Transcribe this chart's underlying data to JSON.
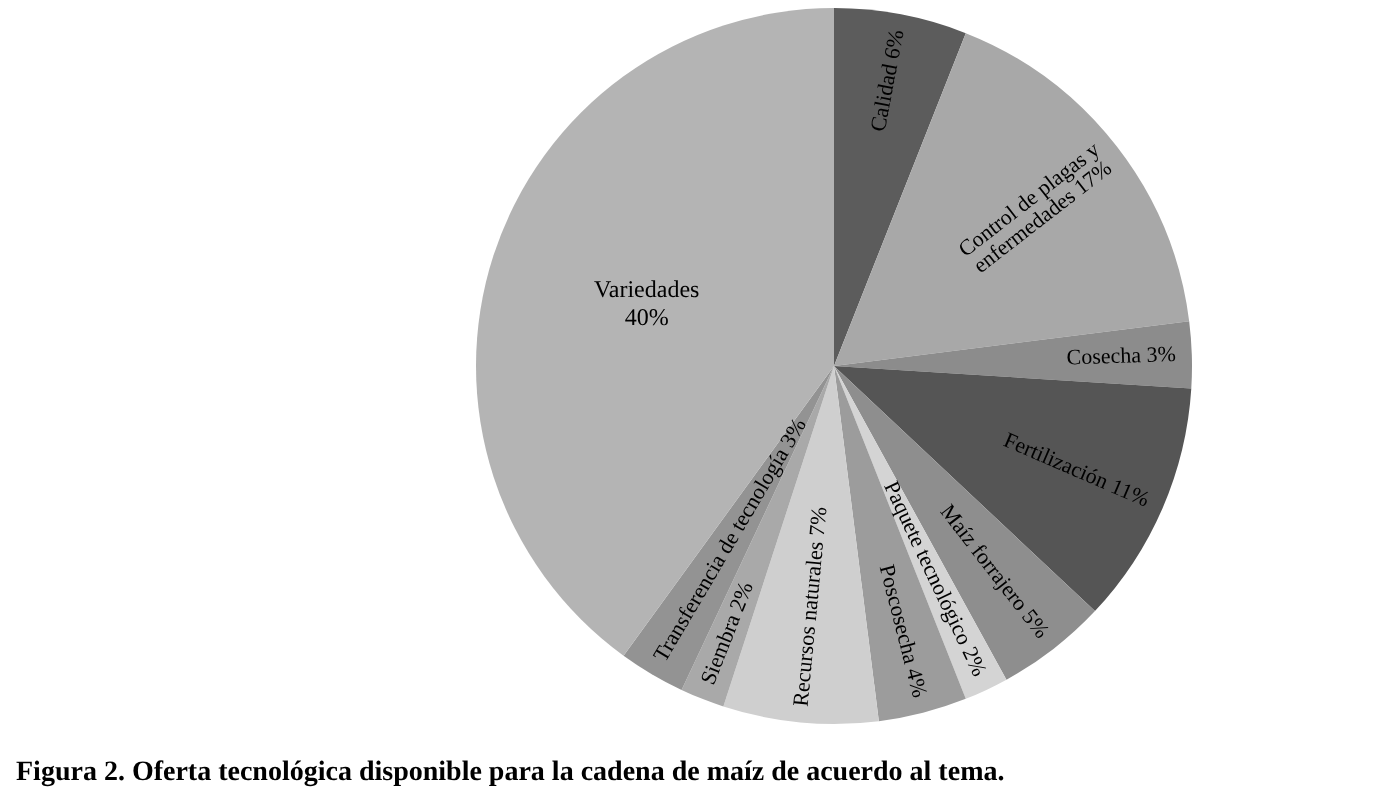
{
  "chart_data": {
    "type": "pie",
    "title": "Figura 2. Oferta tecnológica disponible para la cadena de maíz de acuerdo al tema.",
    "categories": [
      "Calidad",
      "Control de plagas y enfermedades",
      "Cosecha",
      "Fertilización",
      "Maíz forrajero",
      "Paquete tecnológico",
      "Poscosecha",
      "Recursos naturales",
      "Siembra",
      "Transferencia de tecnología",
      "Variedades"
    ],
    "values": [
      6,
      17,
      3,
      11,
      5,
      2,
      4,
      7,
      2,
      3,
      40
    ],
    "colors": [
      "#5c5c5c",
      "#a8a8a8",
      "#8c8c8c",
      "#555555",
      "#8e8e8e",
      "#d4d4d4",
      "#9c9c9c",
      "#cfcfcf",
      "#a9a9a9",
      "#939393",
      "#b4b4b4"
    ],
    "value_labels": [
      "6%",
      "17%",
      "3%",
      "11%",
      "5%",
      "2%",
      "4%",
      "7%",
      "2%",
      "3%",
      "40%"
    ]
  }
}
